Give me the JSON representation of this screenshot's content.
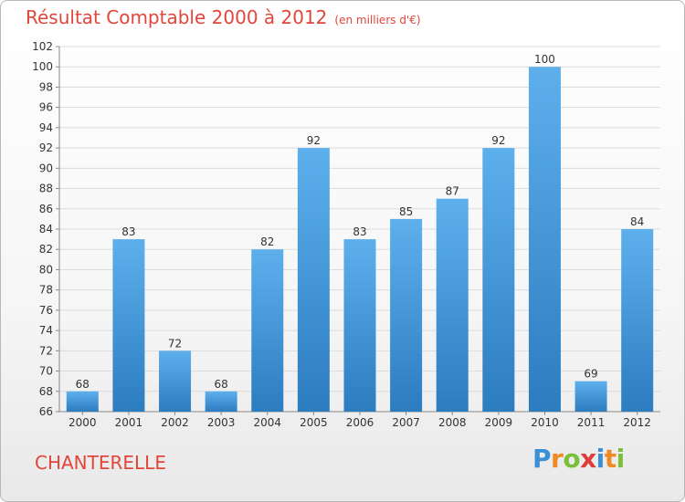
{
  "header": {
    "title": "Résultat Comptable 2000 à 2012",
    "unit": "(en milliers d'€)"
  },
  "location": "CHANTERELLE",
  "brand": {
    "letters": [
      "P",
      "r",
      "o",
      "x",
      "i",
      "t",
      "i"
    ],
    "colors": [
      "#3a8fd6",
      "#f08a24",
      "#7bbf3a",
      "#e03c3c",
      "#3a8fd6",
      "#f08a24",
      "#7bbf3a"
    ]
  },
  "chart_data": {
    "type": "bar",
    "title": "Résultat Comptable 2000 à 2012",
    "subtitle": "(en milliers d'€)",
    "categories": [
      "2000",
      "2001",
      "2002",
      "2003",
      "2004",
      "2005",
      "2006",
      "2007",
      "2008",
      "2009",
      "2010",
      "2011",
      "2012"
    ],
    "values": [
      68,
      83,
      72,
      68,
      82,
      92,
      83,
      85,
      87,
      92,
      100,
      69,
      84
    ],
    "ylim": [
      66,
      102
    ],
    "yticks": [
      66,
      68,
      70,
      72,
      74,
      76,
      78,
      80,
      82,
      84,
      86,
      88,
      90,
      92,
      94,
      96,
      98,
      100,
      102
    ],
    "xlabel": "",
    "ylabel": "",
    "grid": true,
    "bar_color": "#4a9ee0"
  }
}
